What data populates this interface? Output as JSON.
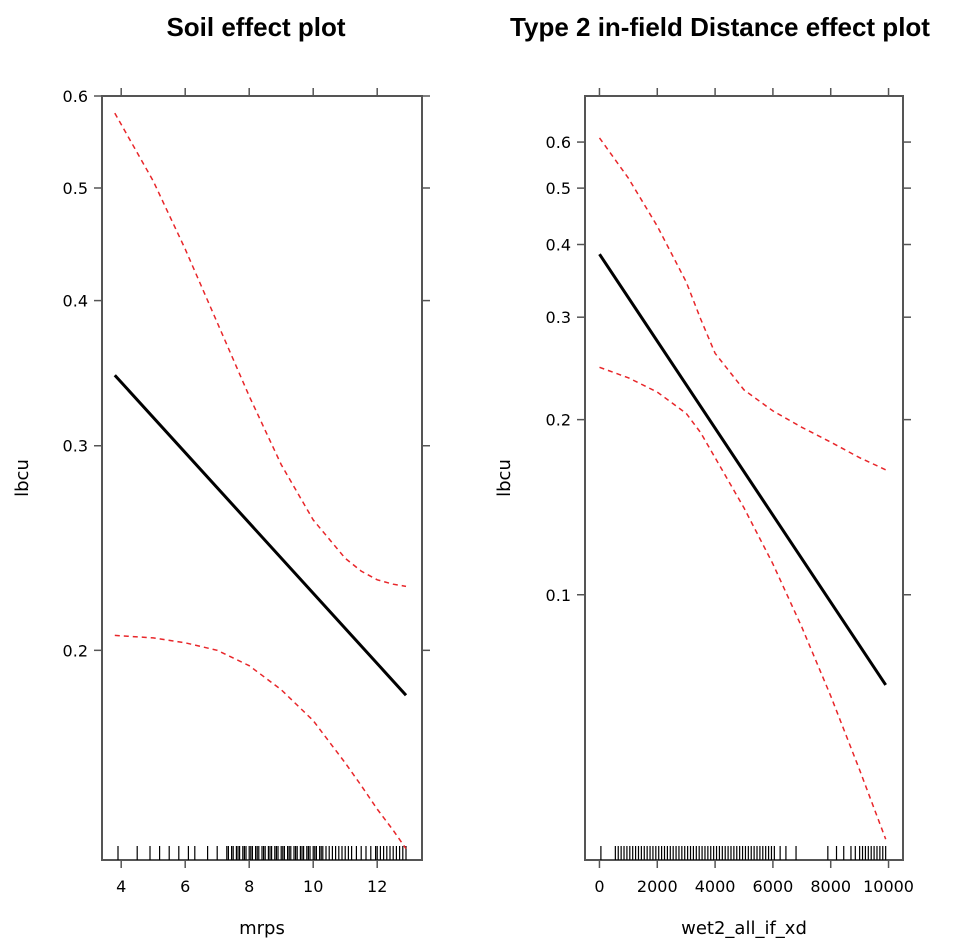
{
  "chart_data": [
    {
      "type": "line",
      "title": "Soil effect plot",
      "xlabel": "mrps",
      "ylabel": "lbcu",
      "y_scale": "log",
      "xlim": [
        3.4,
        13.4
      ],
      "ylim": [
        0.132,
        0.6
      ],
      "x_ticks": [
        4,
        6,
        8,
        10,
        12
      ],
      "x_tick_labels": [
        "4",
        "6",
        "8",
        "10",
        "12"
      ],
      "y_ticks": [
        0.2,
        0.3,
        0.4,
        0.5,
        0.6
      ],
      "y_tick_labels": [
        "0.2",
        "0.3",
        "0.4",
        "0.5",
        "0.6"
      ],
      "series": [
        {
          "role": "fit",
          "color": "#000000",
          "x": [
            3.8,
            12.9
          ],
          "y": [
            0.345,
            0.183
          ]
        },
        {
          "role": "upper",
          "color": "#e8262a",
          "x": [
            3.8,
            5,
            6,
            7,
            8,
            9,
            10,
            11,
            11.5,
            12,
            12.5,
            12.9
          ],
          "y": [
            0.58,
            0.507,
            0.443,
            0.383,
            0.331,
            0.289,
            0.259,
            0.24,
            0.234,
            0.23,
            0.228,
            0.227
          ]
        },
        {
          "role": "lower",
          "color": "#e8262a",
          "x": [
            3.8,
            5,
            6,
            7,
            8,
            9,
            10,
            11,
            11.5,
            12,
            12.5,
            12.9
          ],
          "y": [
            0.206,
            0.205,
            0.203,
            0.2,
            0.194,
            0.185,
            0.174,
            0.16,
            0.153,
            0.146,
            0.14,
            0.135
          ]
        }
      ],
      "rug": [
        3.9,
        4.5,
        4.9,
        5.2,
        5.5,
        5.8,
        6.1,
        6.3,
        6.7,
        7.0,
        7.3,
        7.35,
        7.45,
        7.5,
        7.6,
        7.65,
        7.7,
        7.8,
        7.85,
        7.9,
        8.0,
        8.05,
        8.1,
        8.2,
        8.25,
        8.3,
        8.4,
        8.45,
        8.5,
        8.6,
        8.65,
        8.7,
        8.8,
        8.85,
        8.9,
        9.0,
        9.05,
        9.1,
        9.2,
        9.25,
        9.3,
        9.4,
        9.45,
        9.5,
        9.6,
        9.65,
        9.7,
        9.8,
        9.85,
        9.9,
        10.0,
        10.05,
        10.1,
        10.2,
        10.25,
        10.3,
        10.4,
        10.5,
        10.6,
        10.7,
        10.8,
        10.9,
        11.0,
        11.1,
        11.2,
        11.35,
        11.5,
        11.65,
        11.8,
        11.95,
        12.0,
        12.1,
        12.2,
        12.3,
        12.4,
        12.5,
        12.6,
        12.7,
        12.8,
        12.9
      ]
    },
    {
      "type": "line",
      "title": "Type 2 in-field Distance effect plot",
      "xlabel": "wet2_all_if_xd",
      "ylabel": "lbcu",
      "y_scale": "log",
      "xlim": [
        -500,
        10500
      ],
      "ylim": [
        0.035,
        0.72
      ],
      "x_ticks": [
        0,
        2000,
        4000,
        6000,
        8000,
        10000
      ],
      "x_tick_labels": [
        "0",
        "2000",
        "4000",
        "6000",
        "8000",
        "10000"
      ],
      "y_ticks": [
        0.1,
        0.2,
        0.3,
        0.4,
        0.5,
        0.6
      ],
      "y_tick_labels": [
        "0.1",
        "0.2",
        "0.3",
        "0.4",
        "0.5",
        "0.6"
      ],
      "series": [
        {
          "role": "fit",
          "color": "#000000",
          "x": [
            0,
            9900
          ],
          "y": [
            0.385,
            0.07
          ]
        },
        {
          "role": "upper",
          "color": "#e8262a",
          "x": [
            0,
            1000,
            2000,
            3000,
            3500,
            4000,
            5000,
            6000,
            7000,
            8000,
            9000,
            9900
          ],
          "y": [
            0.61,
            0.52,
            0.43,
            0.345,
            0.298,
            0.26,
            0.225,
            0.207,
            0.194,
            0.183,
            0.172,
            0.164
          ]
        },
        {
          "role": "lower",
          "color": "#e8262a",
          "x": [
            0,
            1000,
            2000,
            3000,
            3500,
            4000,
            5000,
            6000,
            7000,
            8000,
            9000,
            9900
          ],
          "y": [
            0.246,
            0.236,
            0.223,
            0.205,
            0.19,
            0.172,
            0.141,
            0.113,
            0.088,
            0.067,
            0.05,
            0.038
          ]
        }
      ],
      "rug": [
        50,
        550,
        650,
        750,
        850,
        950,
        1050,
        1150,
        1250,
        1350,
        1450,
        1550,
        1650,
        1750,
        1850,
        1950,
        2050,
        2150,
        2250,
        2350,
        2450,
        2550,
        2650,
        2750,
        2850,
        2950,
        3050,
        3150,
        3250,
        3350,
        3450,
        3550,
        3650,
        3750,
        3850,
        3950,
        4050,
        4150,
        4250,
        4350,
        4450,
        4550,
        4650,
        4750,
        4850,
        4950,
        5050,
        5150,
        5250,
        5350,
        5450,
        5550,
        5650,
        5750,
        5850,
        5950,
        6050,
        6250,
        6450,
        6800,
        7900,
        8200,
        8450,
        8700,
        8850,
        9000,
        9100,
        9200,
        9300,
        9400,
        9500,
        9600,
        9700,
        9800,
        9900
      ]
    }
  ]
}
